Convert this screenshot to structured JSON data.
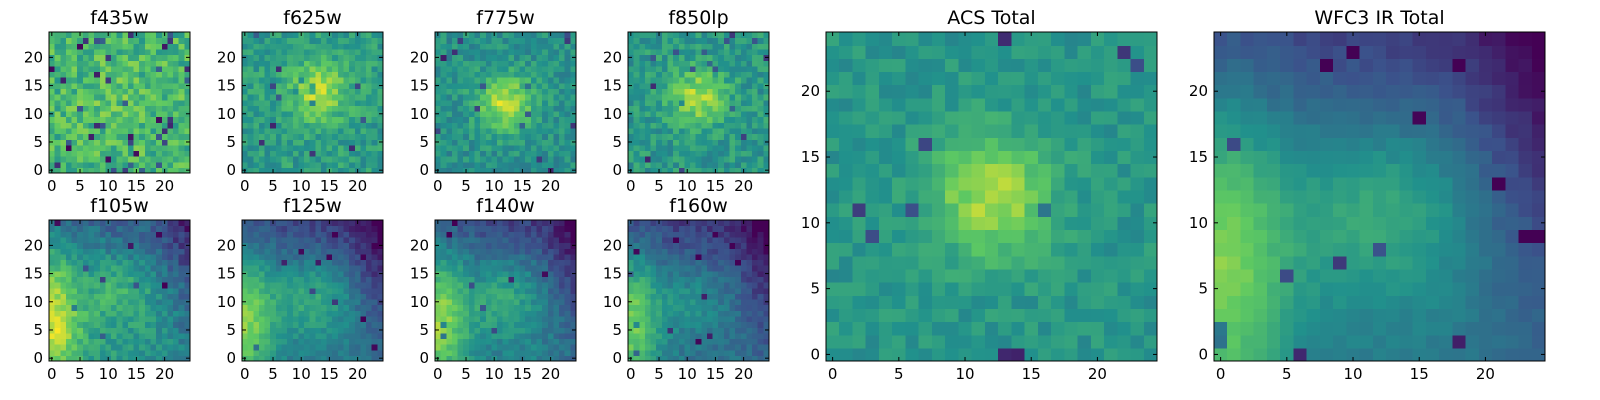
{
  "figure": {
    "type": "image-grid",
    "colormap": "viridis",
    "colormap_stops": [
      "#440154",
      "#3b528b",
      "#21918c",
      "#5ec962",
      "#fde725"
    ]
  },
  "chart_data": [
    {
      "type": "heatmap",
      "title": "f435w",
      "grid": 25,
      "xticks": [
        0,
        5,
        10,
        15,
        20
      ],
      "yticks": [
        0,
        5,
        10,
        15,
        20
      ],
      "xlim": [
        -0.5,
        24.5
      ],
      "ylim": [
        -0.5,
        24.5
      ],
      "pattern": "noise",
      "center": [
        12,
        12
      ],
      "sigma": 5,
      "amp": 0.05,
      "base": 0.66,
      "noise": 0.3,
      "seed": 11
    },
    {
      "type": "heatmap",
      "title": "f625w",
      "grid": 25,
      "xticks": [
        0,
        5,
        10,
        15,
        20
      ],
      "yticks": [
        0,
        5,
        10,
        15,
        20
      ],
      "xlim": [
        -0.5,
        24.5
      ],
      "ylim": [
        -0.5,
        24.5
      ],
      "pattern": "blob",
      "center": [
        13,
        14
      ],
      "sigma": 3.8,
      "amp": 0.32,
      "base": 0.55,
      "noise": 0.22,
      "seed": 23
    },
    {
      "type": "heatmap",
      "title": "f775w",
      "grid": 25,
      "xticks": [
        0,
        5,
        10,
        15,
        20
      ],
      "yticks": [
        0,
        5,
        10,
        15,
        20
      ],
      "xlim": [
        -0.5,
        24.5
      ],
      "ylim": [
        -0.5,
        24.5
      ],
      "pattern": "blob",
      "center": [
        12,
        12
      ],
      "sigma": 3.5,
      "amp": 0.4,
      "base": 0.5,
      "noise": 0.2,
      "seed": 37
    },
    {
      "type": "heatmap",
      "title": "f850lp",
      "grid": 25,
      "xticks": [
        0,
        5,
        10,
        15,
        20
      ],
      "yticks": [
        0,
        5,
        10,
        15,
        20
      ],
      "xlim": [
        -0.5,
        24.5
      ],
      "ylim": [
        -0.5,
        24.5
      ],
      "pattern": "blob",
      "center": [
        12,
        13
      ],
      "sigma": 3.5,
      "amp": 0.33,
      "base": 0.53,
      "noise": 0.22,
      "seed": 41
    },
    {
      "type": "heatmap",
      "title": "f105w",
      "grid": 25,
      "xticks": [
        0,
        5,
        10,
        15,
        20
      ],
      "yticks": [
        0,
        5,
        10,
        15,
        20
      ],
      "xlim": [
        -0.5,
        24.5
      ],
      "ylim": [
        -0.5,
        24.5
      ],
      "pattern": "corner",
      "center": [
        12,
        12
      ],
      "sigma": 4.5,
      "amp": 0.18,
      "base": 0.52,
      "noise": 0.18,
      "seed": 53
    },
    {
      "type": "heatmap",
      "title": "f125w",
      "grid": 25,
      "xticks": [
        0,
        5,
        10,
        15,
        20
      ],
      "yticks": [
        0,
        5,
        10,
        15,
        20
      ],
      "xlim": [
        -0.5,
        24.5
      ],
      "ylim": [
        -0.5,
        24.5
      ],
      "pattern": "corner",
      "center": [
        12,
        11
      ],
      "sigma": 5,
      "amp": 0.25,
      "base": 0.4,
      "noise": 0.12,
      "seed": 61
    },
    {
      "type": "heatmap",
      "title": "f140w",
      "grid": 25,
      "xticks": [
        0,
        5,
        10,
        15,
        20
      ],
      "yticks": [
        0,
        5,
        10,
        15,
        20
      ],
      "xlim": [
        -0.5,
        24.5
      ],
      "ylim": [
        -0.5,
        24.5
      ],
      "pattern": "corner",
      "center": [
        12,
        11
      ],
      "sigma": 5,
      "amp": 0.22,
      "base": 0.42,
      "noise": 0.14,
      "seed": 73
    },
    {
      "type": "heatmap",
      "title": "f160w",
      "grid": 25,
      "xticks": [
        0,
        5,
        10,
        15,
        20
      ],
      "yticks": [
        0,
        5,
        10,
        15,
        20
      ],
      "xlim": [
        -0.5,
        24.5
      ],
      "ylim": [
        -0.5,
        24.5
      ],
      "pattern": "corner",
      "center": [
        11,
        11
      ],
      "sigma": 4.5,
      "amp": 0.15,
      "base": 0.38,
      "noise": 0.13,
      "seed": 89
    },
    {
      "type": "heatmap",
      "title": "ACS Total",
      "grid": 25,
      "xticks": [
        0,
        5,
        10,
        15,
        20
      ],
      "yticks": [
        0,
        5,
        10,
        15,
        20
      ],
      "xlim": [
        -0.5,
        24.5
      ],
      "ylim": [
        -0.5,
        24.5
      ],
      "pattern": "blob",
      "center": [
        12,
        12
      ],
      "sigma": 3.2,
      "amp": 0.36,
      "base": 0.52,
      "noise": 0.14,
      "seed": 97
    },
    {
      "type": "heatmap",
      "title": "WFC3 IR Total",
      "grid": 25,
      "xticks": [
        0,
        5,
        10,
        15,
        20
      ],
      "yticks": [
        0,
        5,
        10,
        15,
        20
      ],
      "xlim": [
        -0.5,
        24.5
      ],
      "ylim": [
        -0.5,
        24.5
      ],
      "pattern": "corner",
      "center": [
        12,
        11
      ],
      "sigma": 5,
      "amp": 0.25,
      "base": 0.4,
      "noise": 0.06,
      "seed": 101
    }
  ]
}
